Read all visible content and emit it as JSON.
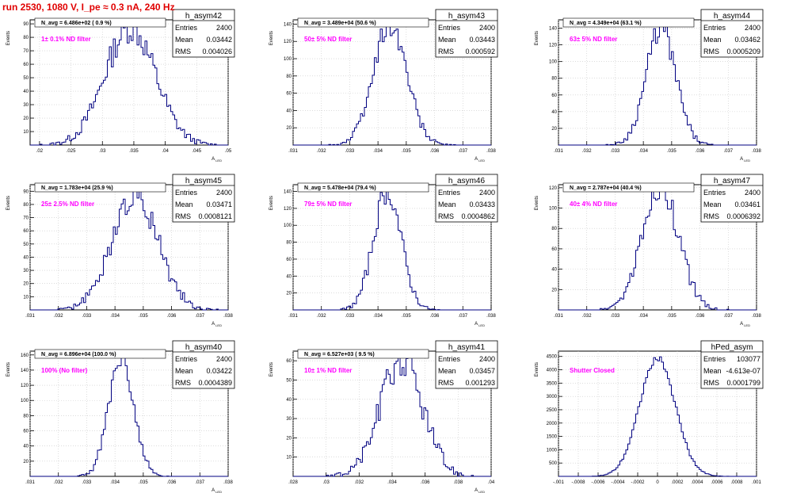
{
  "page": {
    "title": "run 2530,  1080 V, I_pe ≈ 0.3 nA, 240 Hz",
    "title_color": "#e00000",
    "hist_color": "#000080",
    "note_color": "#ff00ff"
  },
  "chart_data": [
    {
      "type": "histogram",
      "name": "h_asym42",
      "nlabel": "N_avg = 6.486e+02 ( 0.9 %)",
      "note": "1± 0.1% ND filter",
      "stats": {
        "entries": "2400",
        "mean": "0.03442",
        "rms": "0.004026"
      },
      "ylabel": "Events",
      "xlabel": "A_{LED}",
      "xlim": [
        0.0185,
        0.05
      ],
      "ylim": [
        0,
        93
      ],
      "xticks": [
        0.02,
        0.025,
        0.03,
        0.035,
        0.04,
        0.045,
        0.05
      ],
      "yticks": [
        10,
        20,
        30,
        40,
        50,
        60,
        70,
        80,
        90
      ],
      "dist": "normal",
      "peak": 87
    },
    {
      "type": "histogram",
      "name": "h_asym43",
      "nlabel": "N_avg = 3.489e+04 (50.6 %)",
      "note": "50± 5% ND filter",
      "stats": {
        "entries": "2400",
        "mean": "0.03443",
        "rms": "0.000592"
      },
      "ylabel": "Events",
      "xlabel": "A_{LED}",
      "xlim": [
        0.031,
        0.038
      ],
      "ylim": [
        0,
        145
      ],
      "xticks": [
        0.031,
        0.032,
        0.033,
        0.034,
        0.035,
        0.036,
        0.037,
        0.038
      ],
      "yticks": [
        20,
        40,
        60,
        80,
        100,
        120,
        140
      ],
      "dist": "normal",
      "peak": 140
    },
    {
      "type": "histogram",
      "name": "h_asym44",
      "nlabel": "N_avg = 4.349e+04 (63.1 %)",
      "note": "63± 5% ND filter",
      "stats": {
        "entries": "2400",
        "mean": "0.03462",
        "rms": "0.0005209"
      },
      "ylabel": "Events",
      "xlabel": "A_{LED}",
      "xlim": [
        0.031,
        0.038
      ],
      "ylim": [
        0,
        150
      ],
      "xticks": [
        0.031,
        0.032,
        0.033,
        0.034,
        0.035,
        0.036,
        0.037,
        0.038
      ],
      "yticks": [
        20,
        40,
        60,
        80,
        100,
        120,
        140
      ],
      "dist": "normal",
      "peak": 140
    },
    {
      "type": "histogram",
      "name": "h_asym45",
      "nlabel": "N_avg = 1.783e+04 (25.9 %)",
      "note": "25± 2.5% ND filter",
      "stats": {
        "entries": "2400",
        "mean": "0.03471",
        "rms": "0.0008121"
      },
      "ylabel": "Events",
      "xlabel": "A_{LED}",
      "xlim": [
        0.031,
        0.038
      ],
      "ylim": [
        0,
        95
      ],
      "xticks": [
        0.031,
        0.032,
        0.033,
        0.034,
        0.035,
        0.036,
        0.037,
        0.038
      ],
      "yticks": [
        10,
        20,
        30,
        40,
        50,
        60,
        70,
        80,
        90
      ],
      "dist": "normal",
      "peak": 88
    },
    {
      "type": "histogram",
      "name": "h_asym46",
      "nlabel": "N_avg = 5.478e+04 (79.4 %)",
      "note": "79± 5% ND filter",
      "stats": {
        "entries": "2400",
        "mean": "0.03433",
        "rms": "0.0004862"
      },
      "ylabel": "Events",
      "xlabel": "A_{LED}",
      "xlim": [
        0.031,
        0.038
      ],
      "ylim": [
        0,
        148
      ],
      "xticks": [
        0.031,
        0.032,
        0.033,
        0.034,
        0.035,
        0.036,
        0.037,
        0.038
      ],
      "yticks": [
        20,
        40,
        60,
        80,
        100,
        120,
        140
      ],
      "dist": "normal",
      "peak": 140
    },
    {
      "type": "histogram",
      "name": "h_asym47",
      "nlabel": "N_avg = 2.787e+04 (40.4 %)",
      "note": "40± 4% ND filter",
      "stats": {
        "entries": "2400",
        "mean": "0.03461",
        "rms": "0.0006392"
      },
      "ylabel": "Events",
      "xlabel": "A_{LED}",
      "xlim": [
        0.031,
        0.038
      ],
      "ylim": [
        0,
        123
      ],
      "xticks": [
        0.031,
        0.032,
        0.033,
        0.034,
        0.035,
        0.036,
        0.037,
        0.038
      ],
      "yticks": [
        20,
        40,
        60,
        80,
        100,
        120
      ],
      "dist": "normal",
      "peak": 120
    },
    {
      "type": "histogram",
      "name": "h_asym40",
      "nlabel": "N_avg = 6.896e+04 (100.0 %)",
      "note": "100% (No filter)",
      "stats": {
        "entries": "2400",
        "mean": "0.03422",
        "rms": "0.0004389"
      },
      "ylabel": "Events",
      "xlabel": "A_{LED}",
      "xlim": [
        0.031,
        0.038
      ],
      "ylim": [
        0,
        165
      ],
      "xticks": [
        0.031,
        0.032,
        0.033,
        0.034,
        0.035,
        0.036,
        0.037,
        0.038
      ],
      "yticks": [
        20,
        40,
        60,
        80,
        100,
        120,
        140,
        160
      ],
      "dist": "normal",
      "peak": 158
    },
    {
      "type": "histogram",
      "name": "h_asym41",
      "nlabel": "N_avg = 6.527e+03 ( 9.5 %)",
      "note": "10± 1% ND filter",
      "stats": {
        "entries": "2400",
        "mean": "0.03457",
        "rms": "0.001293"
      },
      "ylabel": "Events",
      "xlabel": "A_{LED}",
      "xlim": [
        0.028,
        0.04
      ],
      "ylim": [
        0,
        65
      ],
      "xticks": [
        0.028,
        0.03,
        0.032,
        0.034,
        0.036,
        0.038,
        0.04
      ],
      "yticks": [
        10,
        20,
        30,
        40,
        50,
        60
      ],
      "dist": "normal",
      "peak": 60
    },
    {
      "type": "histogram",
      "name": "hPed_asym",
      "nlabel": "",
      "note": "Shutter Closed",
      "stats": {
        "entries": "103077",
        "mean": "-4.613e-07",
        "rms": "0.0001799"
      },
      "ylabel": "Events",
      "xlabel": "",
      "xlim": [
        -0.001,
        0.001
      ],
      "ylim": [
        0,
        4700
      ],
      "xticks": [
        -0.001,
        -0.0008,
        -0.0006,
        -0.0004,
        -0.0002,
        0,
        0.0002,
        0.0004,
        0.0006,
        0.0008,
        0.001
      ],
      "yticks": [
        500,
        1000,
        1500,
        2000,
        2500,
        3000,
        3500,
        4000,
        4500
      ],
      "dist": "normal",
      "peak": 4450
    }
  ]
}
